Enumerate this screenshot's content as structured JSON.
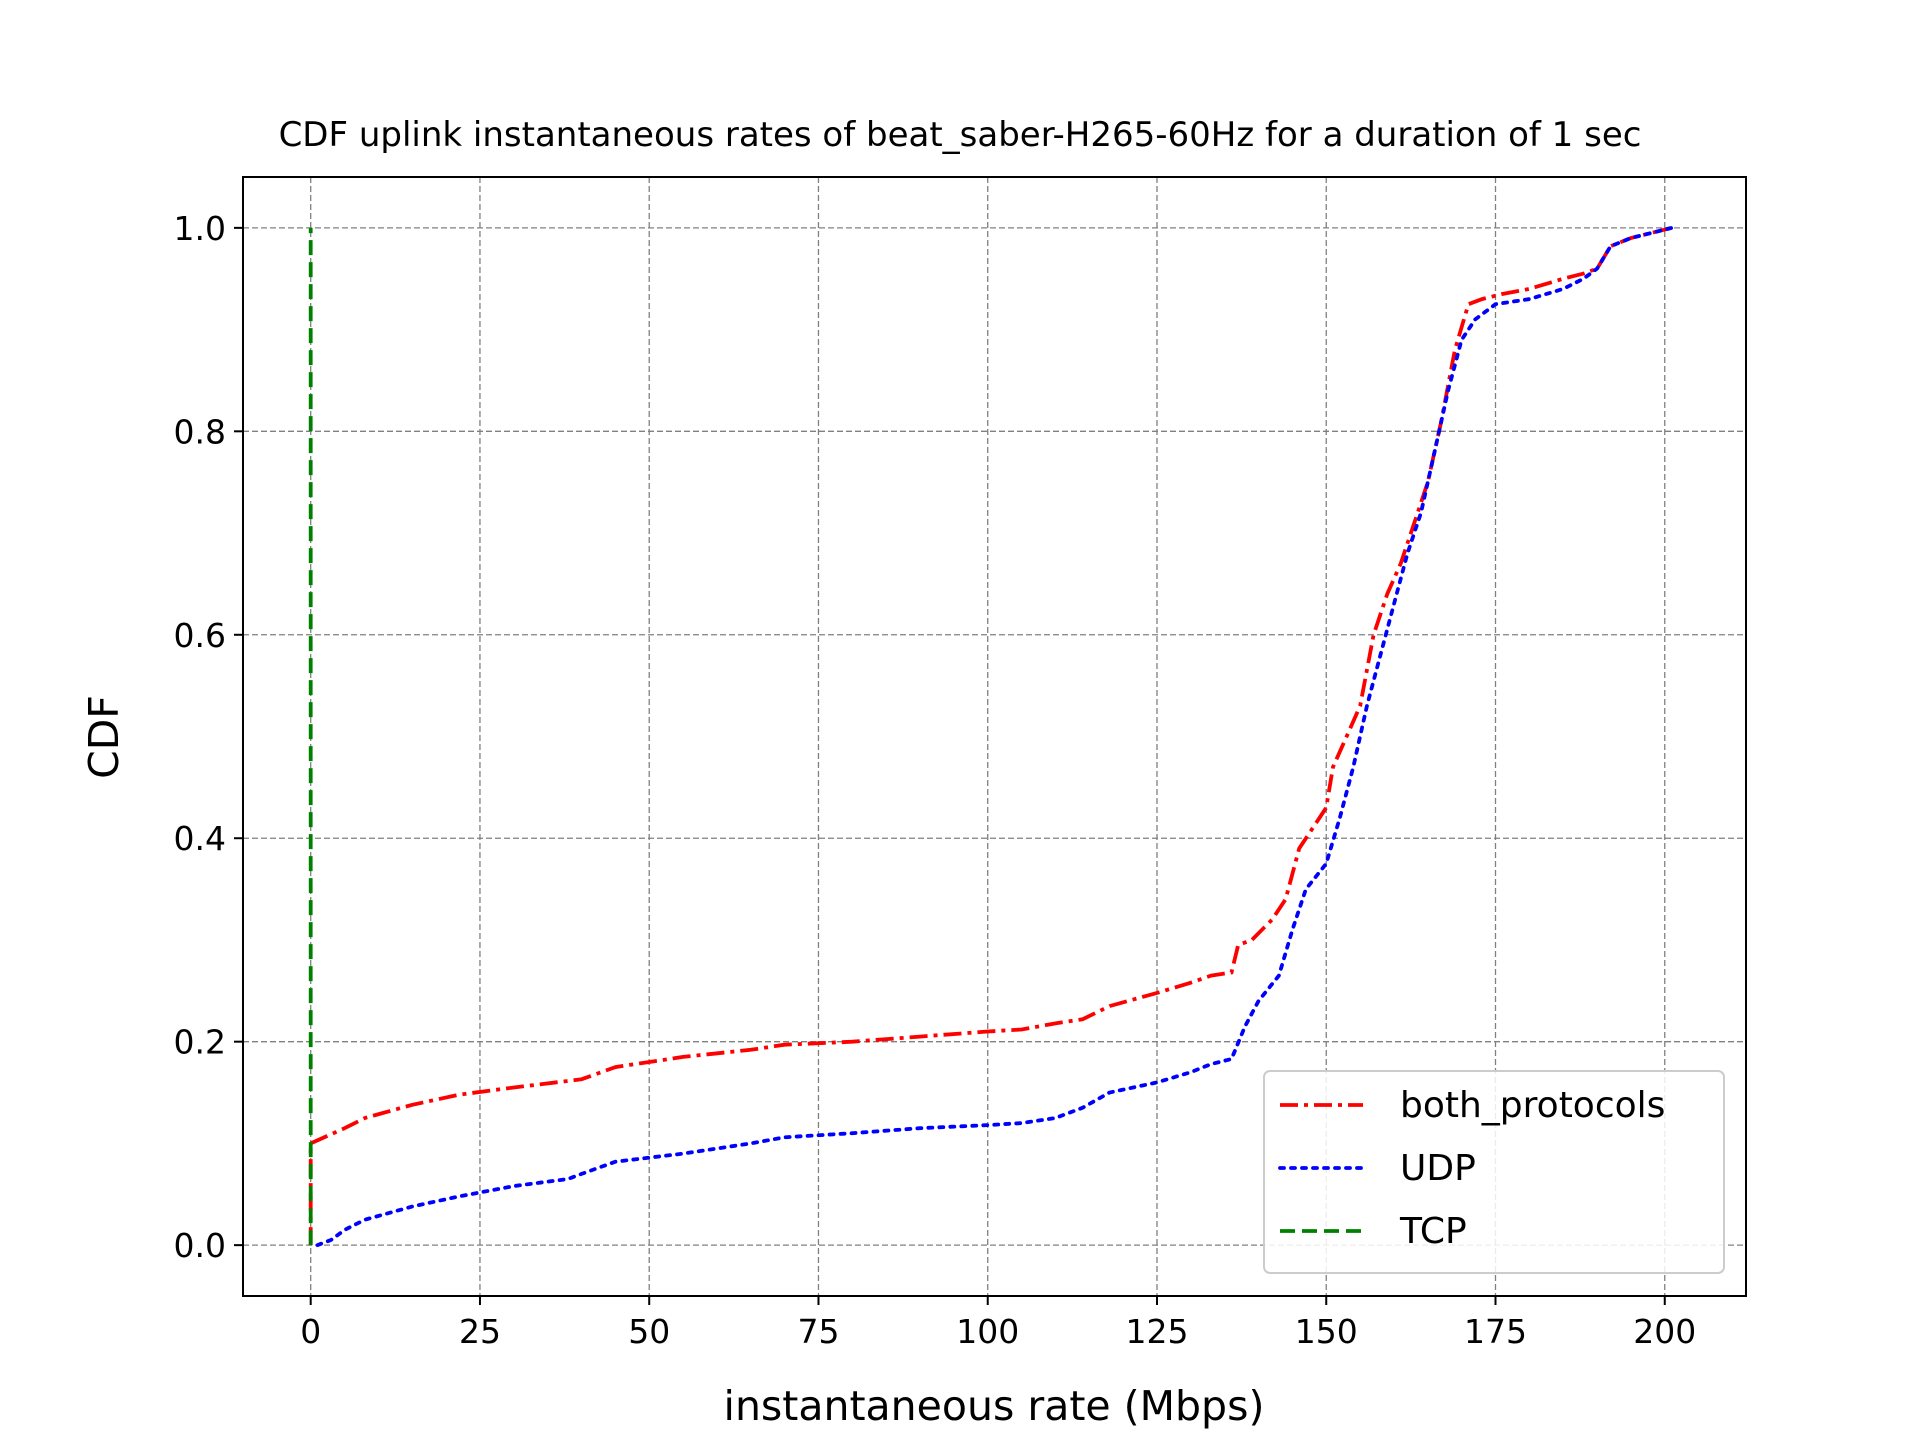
{
  "chart_data": {
    "type": "line",
    "title": "CDF uplink instantaneous rates of beat_saber-H265-60Hz for a duration of 1 sec",
    "xlabel": "instantaneous rate (Mbps)",
    "ylabel": "CDF",
    "xlim": [
      -10,
      212
    ],
    "ylim": [
      -0.05,
      1.05
    ],
    "xticks": [
      0,
      25,
      50,
      75,
      100,
      125,
      150,
      175,
      200
    ],
    "xtick_labels": [
      "0",
      "25",
      "50",
      "75",
      "100",
      "125",
      "150",
      "175",
      "200"
    ],
    "yticks": [
      0.0,
      0.2,
      0.4,
      0.6,
      0.8,
      1.0
    ],
    "ytick_labels": [
      "0.0",
      "0.2",
      "0.4",
      "0.6",
      "0.8",
      "1.0"
    ],
    "grid": true,
    "legend_position": "lower-right",
    "series": [
      {
        "name": "both_protocols",
        "color": "#ff0000",
        "style": "dashdot",
        "x": [
          0,
          0,
          0,
          0,
          5,
          8,
          15,
          22,
          30,
          40,
          45,
          55,
          65,
          70,
          80,
          90,
          100,
          105,
          110,
          114,
          118,
          125,
          130,
          133,
          136,
          137,
          139,
          142,
          144,
          146,
          148,
          150,
          151,
          153,
          155,
          157,
          159,
          161,
          163,
          165,
          167,
          169,
          171,
          173,
          176,
          180,
          185,
          188,
          190,
          192,
          195,
          198,
          201
        ],
        "y": [
          0.0,
          0.03,
          0.07,
          0.1,
          0.115,
          0.125,
          0.138,
          0.148,
          0.155,
          0.163,
          0.175,
          0.185,
          0.192,
          0.197,
          0.2,
          0.205,
          0.21,
          0.212,
          0.218,
          0.222,
          0.235,
          0.248,
          0.258,
          0.265,
          0.268,
          0.295,
          0.3,
          0.32,
          0.34,
          0.39,
          0.41,
          0.43,
          0.47,
          0.5,
          0.53,
          0.6,
          0.64,
          0.67,
          0.71,
          0.75,
          0.81,
          0.88,
          0.925,
          0.93,
          0.935,
          0.94,
          0.95,
          0.955,
          0.96,
          0.982,
          0.99,
          0.995,
          1.0
        ]
      },
      {
        "name": "UDP",
        "color": "#0000ff",
        "style": "dotted",
        "x": [
          1,
          3,
          5,
          8,
          15,
          22,
          30,
          38,
          40,
          45,
          55,
          60,
          65,
          70,
          80,
          90,
          100,
          105,
          110,
          114,
          118,
          125,
          130,
          133,
          136,
          138,
          140,
          143,
          145,
          147,
          150,
          152,
          154,
          156,
          158,
          160,
          162,
          164,
          166,
          168,
          170,
          172,
          175,
          180,
          185,
          188,
          190,
          192,
          195,
          198,
          201
        ],
        "y": [
          0.0,
          0.005,
          0.015,
          0.025,
          0.038,
          0.048,
          0.058,
          0.065,
          0.07,
          0.082,
          0.09,
          0.095,
          0.1,
          0.106,
          0.11,
          0.115,
          0.118,
          0.12,
          0.125,
          0.135,
          0.15,
          0.16,
          0.17,
          0.178,
          0.183,
          0.215,
          0.24,
          0.265,
          0.31,
          0.35,
          0.375,
          0.42,
          0.47,
          0.53,
          0.58,
          0.63,
          0.68,
          0.72,
          0.78,
          0.84,
          0.89,
          0.91,
          0.925,
          0.93,
          0.94,
          0.95,
          0.96,
          0.982,
          0.99,
          0.995,
          1.0
        ]
      },
      {
        "name": "TCP",
        "color": "#008000",
        "style": "dashed",
        "x": [
          0,
          0
        ],
        "y": [
          0.0,
          1.0
        ]
      }
    ]
  }
}
